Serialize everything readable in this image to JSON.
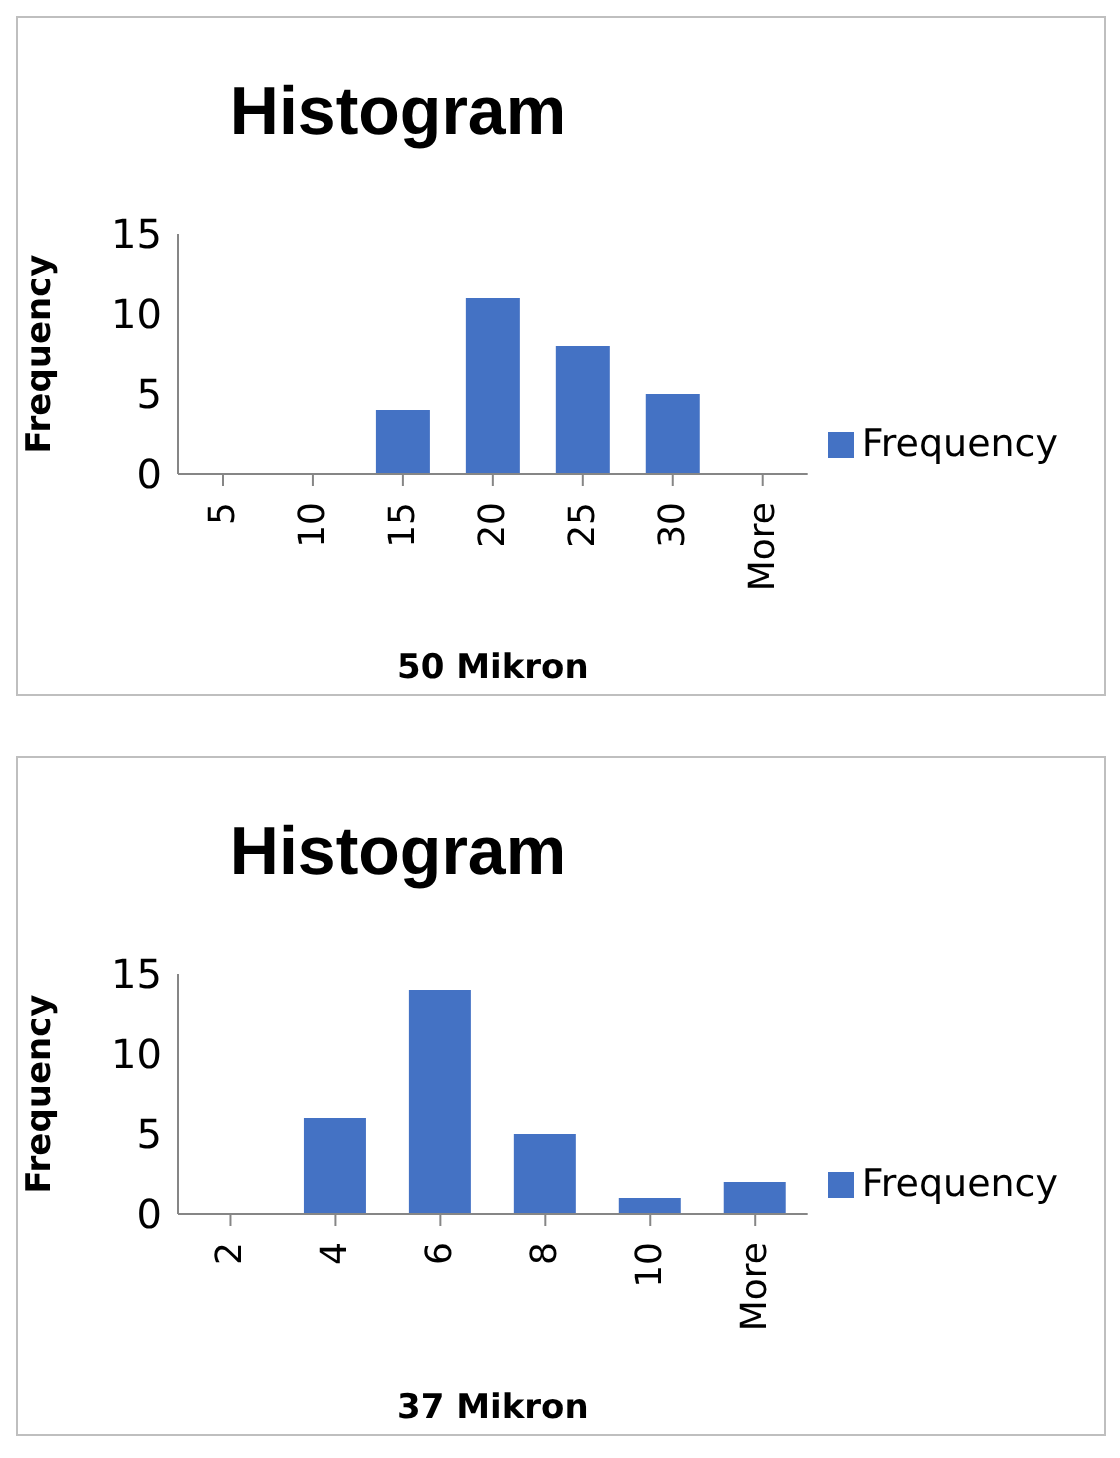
{
  "chart_data": [
    {
      "type": "bar",
      "title": "Histogram",
      "xlabel": "50 Mikron",
      "ylabel": "Frequency",
      "categories": [
        "5",
        "10",
        "15",
        "20",
        "25",
        "30",
        "More"
      ],
      "series": [
        {
          "name": "Frequency",
          "color": "#4472c4",
          "values": [
            0,
            0,
            4,
            11,
            8,
            5,
            0
          ]
        }
      ],
      "ylim": [
        0,
        15
      ],
      "yticks": [
        0,
        5,
        10,
        15
      ],
      "grid": false,
      "legend": "right"
    },
    {
      "type": "bar",
      "title": "Histogram",
      "xlabel": "37 Mikron",
      "ylabel": "Frequency",
      "categories": [
        "2",
        "4",
        "6",
        "8",
        "10",
        "More"
      ],
      "series": [
        {
          "name": "Frequency",
          "color": "#4472c4",
          "values": [
            0,
            6,
            14,
            5,
            1,
            2
          ]
        }
      ],
      "ylim": [
        0,
        15
      ],
      "yticks": [
        0,
        5,
        10,
        15
      ],
      "grid": false,
      "legend": "right"
    }
  ]
}
